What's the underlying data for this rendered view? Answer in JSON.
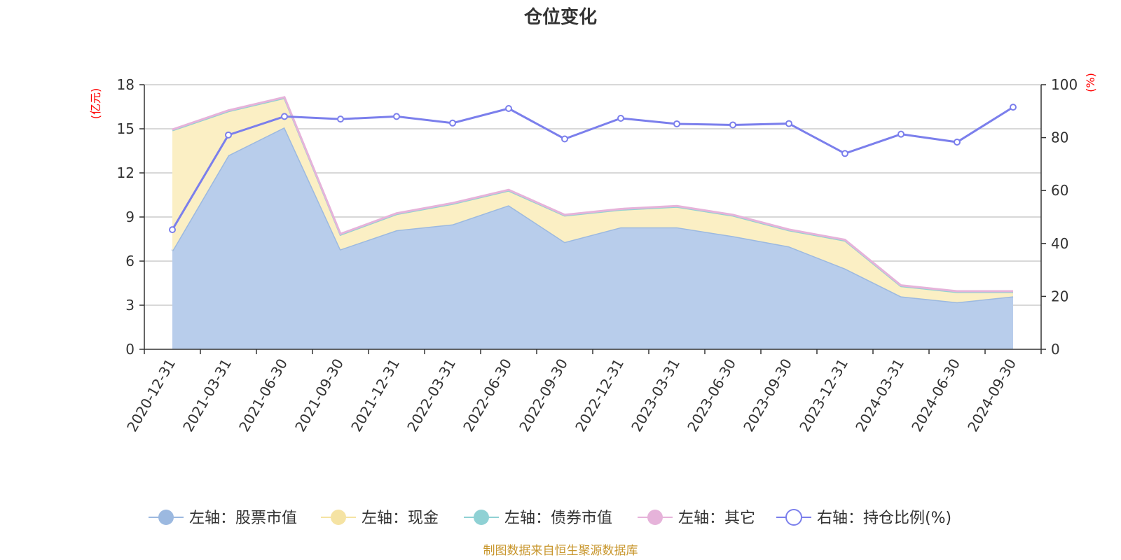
{
  "chart_data": {
    "type": "area",
    "title": "仓位变化",
    "categories": [
      "2020-12-31",
      "2021-03-31",
      "2021-06-30",
      "2021-09-30",
      "2021-12-31",
      "2022-03-31",
      "2022-06-30",
      "2022-09-30",
      "2022-12-31",
      "2023-03-31",
      "2023-06-30",
      "2023-09-30",
      "2023-12-31",
      "2024-03-31",
      "2024-06-30",
      "2024-09-30"
    ],
    "left_axis": {
      "unit": "(亿元)",
      "min": 0,
      "max": 18,
      "ticks": [
        0,
        3,
        6,
        9,
        12,
        15,
        18
      ]
    },
    "right_axis": {
      "unit": "(%)",
      "min": 0,
      "max": 100,
      "ticks": [
        0,
        20,
        40,
        60,
        80,
        100
      ]
    },
    "series": [
      {
        "name": "左轴：股票市值",
        "axis": "left",
        "stack": "total",
        "style": "area",
        "color": "#9cb9e0",
        "fill": "#b8cdeb",
        "values": [
          6.7,
          13.2,
          15.1,
          6.8,
          8.1,
          8.5,
          9.8,
          7.3,
          8.3,
          8.3,
          7.7,
          7.0,
          5.5,
          3.6,
          3.2,
          3.6
        ]
      },
      {
        "name": "左轴：现金",
        "axis": "left",
        "stack": "total",
        "style": "area",
        "color": "#f5e3a3",
        "fill": "#fbefc4",
        "values": [
          8.2,
          3.0,
          2.0,
          1.0,
          1.1,
          1.4,
          1.0,
          1.8,
          1.2,
          1.4,
          1.4,
          1.1,
          1.9,
          0.7,
          0.7,
          0.3
        ]
      },
      {
        "name": "左轴：债券市值",
        "axis": "left",
        "stack": "total",
        "style": "area",
        "color": "#8fd1d4",
        "fill": "#bfe6e8",
        "values": [
          0,
          0,
          0,
          0,
          0,
          0,
          0,
          0,
          0,
          0,
          0,
          0,
          0,
          0,
          0,
          0
        ]
      },
      {
        "name": "左轴：其它",
        "axis": "left",
        "stack": "total",
        "style": "area",
        "color": "#e6b3da",
        "fill": "#f2d5ec",
        "values": [
          0.05,
          0.05,
          0.05,
          0.05,
          0.05,
          0.05,
          0.05,
          0.05,
          0.05,
          0.05,
          0.05,
          0.05,
          0.05,
          0.05,
          0.05,
          0.05
        ]
      },
      {
        "name": "右轴：持仓比例(%)",
        "axis": "right",
        "style": "line",
        "color": "#7b7fec",
        "values": [
          45.2,
          81.0,
          88.0,
          87.0,
          88.0,
          85.5,
          91.0,
          79.5,
          87.3,
          85.2,
          84.8,
          85.3,
          74.0,
          81.3,
          78.3,
          91.5
        ]
      }
    ],
    "legend_position": "bottom",
    "grid": true
  },
  "source_note": "制图数据来自恒生聚源数据库"
}
